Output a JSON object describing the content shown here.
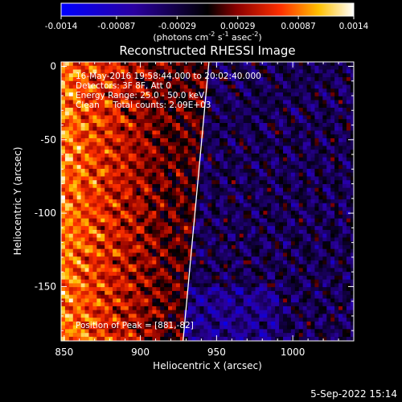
{
  "chart_data": {
    "type": "heatmap",
    "title": "Reconstructed RHESSI Image",
    "xlabel": "Heliocentric X (arcsec)",
    "ylabel": "Heliocentric Y (arcsec)",
    "xlim": [
      848,
      1040
    ],
    "ylim": [
      -187,
      3
    ],
    "x_ticks": [
      850,
      900,
      950,
      1000
    ],
    "x_tick_labels": [
      "850",
      "900",
      "950",
      "1000"
    ],
    "y_ticks": [
      0,
      -50,
      -100,
      -150
    ],
    "y_tick_labels": [
      "0",
      "-50",
      "-100",
      "-150"
    ],
    "colorbar": {
      "range": [
        -0.0014,
        0.0014
      ],
      "tick_values": [
        -0.0014,
        -0.00087,
        -0.00029,
        0.00029,
        0.00087,
        0.0014
      ],
      "tick_labels": [
        "-0.0014",
        "-0.00087",
        "-0.00029",
        "0.00029",
        "0.00087",
        "0.0014"
      ],
      "label": "(photons cm",
      "label_exp1": "-2",
      "label_mid": " s",
      "label_exp2": "-1",
      "label_end": " asec",
      "label_exp3": "-2",
      "label_close": ")"
    },
    "annotations": [
      "16-May-2016 19:58:44.000 to 20:02:40.000",
      "Detectors: 3F 8F, Att 0",
      "Energy Range: 25.0 - 50.0 keV",
      "Clean     Total counts: 2.09E+03"
    ],
    "peak_label": "Position of Peak = [881,-82]",
    "limb_line": [
      [
        928,
        -187
      ],
      [
        945,
        3
      ]
    ]
  },
  "footer": {
    "timestamp": "5-Sep-2022 15:14"
  }
}
